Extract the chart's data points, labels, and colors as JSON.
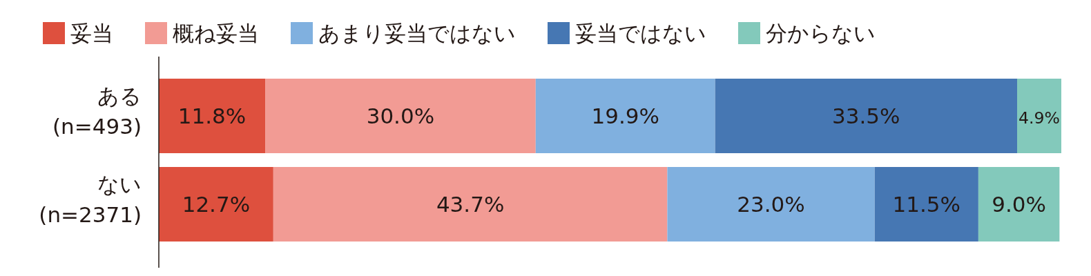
{
  "chart_data": {
    "type": "bar",
    "orientation": "horizontal",
    "stacked": true,
    "legend": "top",
    "categories": [
      "ある\n(n=493)",
      "ない\n(n=2371)"
    ],
    "series": [
      {
        "name": "妥当",
        "color": "#de503e",
        "values": [
          11.8,
          12.7
        ],
        "value_labels": [
          "11.8%",
          "12.7%"
        ]
      },
      {
        "name": "概ね妥当",
        "color": "#f29b94",
        "values": [
          30.0,
          43.7
        ],
        "value_labels": [
          "30.0%",
          "43.7%"
        ]
      },
      {
        "name": "あまり妥当ではない",
        "color": "#80b0df",
        "values": [
          19.9,
          23.0
        ],
        "value_labels": [
          "19.9%",
          "23.0%"
        ]
      },
      {
        "name": "妥当ではない",
        "color": "#4677b3",
        "values": [
          33.5,
          11.5
        ],
        "value_labels": [
          "33.5%",
          "11.5%"
        ]
      },
      {
        "name": "分からない",
        "color": "#83c9bb",
        "values": [
          4.9,
          9.0
        ],
        "value_labels": [
          "4.9%",
          "9.0%"
        ]
      }
    ]
  }
}
